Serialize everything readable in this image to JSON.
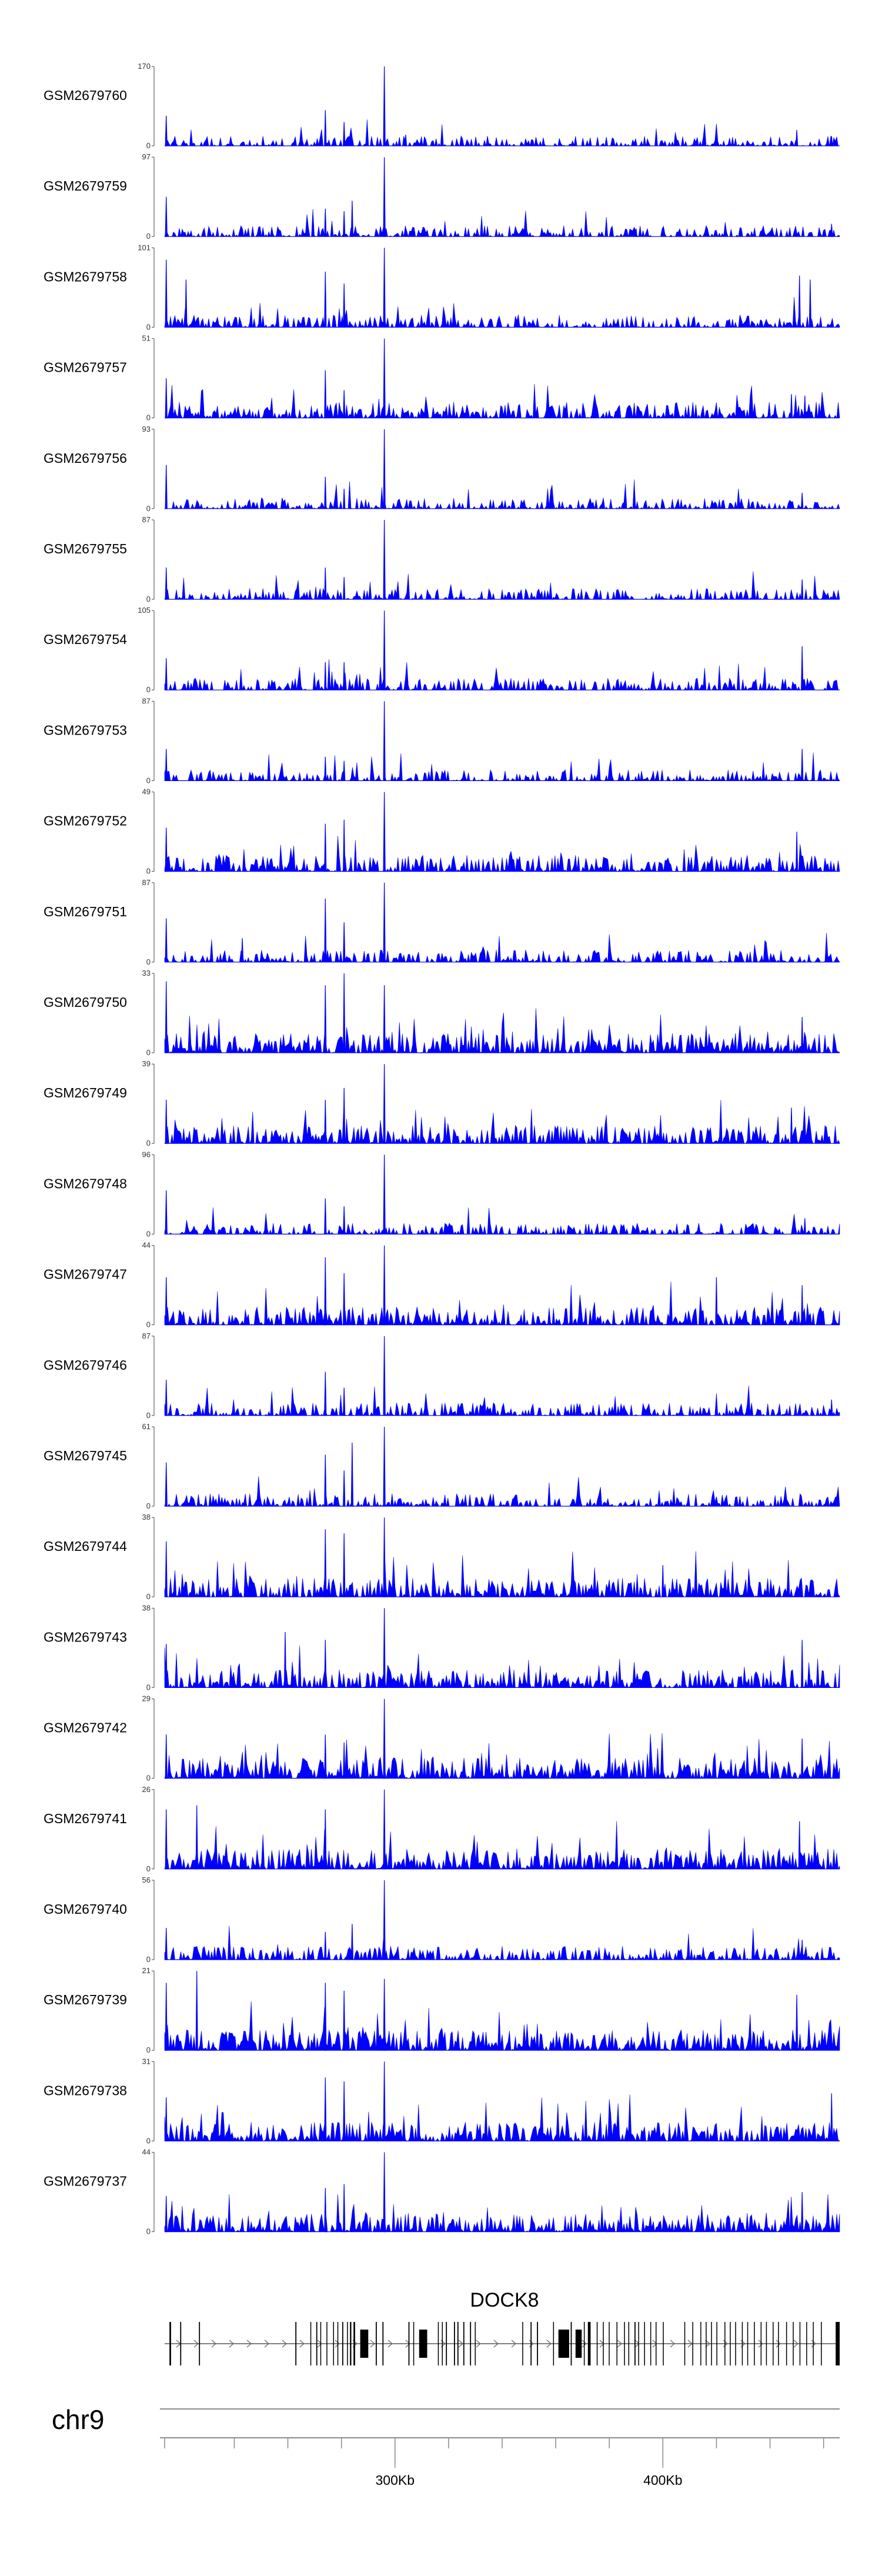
{
  "chart_data": {
    "type": "area",
    "chromosome": "chr9",
    "gene": {
      "name": "DOCK8",
      "strand": "+"
    },
    "x_range_bp": [
      214000,
      466000
    ],
    "x_ticks": [
      {
        "value": 300000,
        "label": "300Kb"
      },
      {
        "value": 400000,
        "label": "400Kb"
      }
    ],
    "x_minor_ticks": [
      214000,
      240000,
      260000,
      280000,
      320000,
      340000,
      360000,
      380000,
      420000,
      440000,
      460000
    ],
    "series_color": "#0000ff",
    "peak_position_bp": 296000,
    "tracks": [
      {
        "name": "GSM2679760",
        "ymax": 170,
        "ymin": 0,
        "density": 0.4,
        "peaks": [
          [
            296000,
            1.0
          ],
          [
            214600,
            0.38
          ],
          [
            274000,
            0.45
          ],
          [
            281000,
            0.3
          ],
          [
            304000,
            0.14
          ],
          [
            450000,
            0.2
          ],
          [
            463000,
            0.12
          ]
        ]
      },
      {
        "name": "GSM2679759",
        "ymax": 97,
        "ymin": 0,
        "density": 0.45,
        "peaks": [
          [
            296000,
            1.0
          ],
          [
            214600,
            0.5
          ],
          [
            274000,
            0.35
          ],
          [
            281000,
            0.32
          ],
          [
            284000,
            0.45
          ],
          [
            390000,
            0.1
          ],
          [
            463000,
            0.16
          ]
        ]
      },
      {
        "name": "GSM2679758",
        "ymax": 101,
        "ymin": 0,
        "density": 0.55,
        "peaks": [
          [
            296000,
            1.0
          ],
          [
            214600,
            0.85
          ],
          [
            222000,
            0.6
          ],
          [
            274000,
            0.7
          ],
          [
            281000,
            0.55
          ],
          [
            451000,
            0.65
          ],
          [
            455000,
            0.6
          ]
        ]
      },
      {
        "name": "GSM2679757",
        "ymax": 51,
        "ymin": 0,
        "density": 0.75,
        "peaks": [
          [
            296000,
            1.0
          ],
          [
            214600,
            0.5
          ],
          [
            274000,
            0.6
          ],
          [
            281000,
            0.35
          ],
          [
            448000,
            0.3
          ],
          [
            453000,
            0.28
          ]
        ]
      },
      {
        "name": "GSM2679756",
        "ymax": 93,
        "ymin": 0,
        "density": 0.45,
        "peaks": [
          [
            296000,
            1.0
          ],
          [
            214600,
            0.55
          ],
          [
            274000,
            0.4
          ],
          [
            281000,
            0.25
          ],
          [
            452000,
            0.2
          ]
        ]
      },
      {
        "name": "GSM2679755",
        "ymax": 87,
        "ymin": 0,
        "density": 0.45,
        "peaks": [
          [
            296000,
            1.0
          ],
          [
            214600,
            0.4
          ],
          [
            274000,
            0.4
          ],
          [
            281000,
            0.28
          ],
          [
            452000,
            0.25
          ]
        ]
      },
      {
        "name": "GSM2679754",
        "ymax": 105,
        "ymin": 0,
        "density": 0.5,
        "peaks": [
          [
            296000,
            1.0
          ],
          [
            214600,
            0.4
          ],
          [
            274000,
            0.35
          ],
          [
            281000,
            0.35
          ],
          [
            452000,
            0.55
          ]
        ]
      },
      {
        "name": "GSM2679753",
        "ymax": 87,
        "ymin": 0,
        "density": 0.45,
        "peaks": [
          [
            296000,
            1.0
          ],
          [
            214600,
            0.4
          ],
          [
            274000,
            0.3
          ],
          [
            281000,
            0.25
          ],
          [
            452000,
            0.4
          ]
        ]
      },
      {
        "name": "GSM2679752",
        "ymax": 49,
        "ymin": 0,
        "density": 0.75,
        "peaks": [
          [
            296000,
            1.0
          ],
          [
            214600,
            0.55
          ],
          [
            274000,
            0.6
          ],
          [
            281000,
            0.65
          ],
          [
            450000,
            0.5
          ]
        ]
      },
      {
        "name": "GSM2679751",
        "ymax": 87,
        "ymin": 0,
        "density": 0.55,
        "peaks": [
          [
            296000,
            1.0
          ],
          [
            214600,
            0.55
          ],
          [
            274000,
            0.8
          ],
          [
            281000,
            0.5
          ],
          [
            243000,
            0.3
          ]
        ]
      },
      {
        "name": "GSM2679750",
        "ymax": 33,
        "ymin": 0,
        "density": 0.95,
        "peaks": [
          [
            296000,
            0.85
          ],
          [
            214600,
            0.9
          ],
          [
            274000,
            0.85
          ],
          [
            281000,
            1.0
          ],
          [
            452000,
            0.45
          ]
        ]
      },
      {
        "name": "GSM2679749",
        "ymax": 39,
        "ymin": 0,
        "density": 0.85,
        "peaks": [
          [
            296000,
            1.0
          ],
          [
            214600,
            0.55
          ],
          [
            274000,
            0.55
          ],
          [
            281000,
            0.7
          ],
          [
            448000,
            0.45
          ]
        ]
      },
      {
        "name": "GSM2679748",
        "ymax": 96,
        "ymin": 0,
        "density": 0.45,
        "peaks": [
          [
            296000,
            1.0
          ],
          [
            214600,
            0.55
          ],
          [
            274000,
            0.45
          ],
          [
            281000,
            0.35
          ],
          [
            453000,
            0.2
          ]
        ]
      },
      {
        "name": "GSM2679747",
        "ymax": 44,
        "ymin": 0,
        "density": 0.85,
        "peaks": [
          [
            296000,
            1.0
          ],
          [
            214600,
            0.6
          ],
          [
            274000,
            0.85
          ],
          [
            281000,
            0.65
          ],
          [
            420000,
            0.6
          ],
          [
            452000,
            0.5
          ]
        ]
      },
      {
        "name": "GSM2679746",
        "ymax": 87,
        "ymin": 0,
        "density": 0.55,
        "peaks": [
          [
            296000,
            1.0
          ],
          [
            214600,
            0.45
          ],
          [
            274000,
            0.55
          ],
          [
            281000,
            0.35
          ],
          [
            463000,
            0.2
          ]
        ]
      },
      {
        "name": "GSM2679745",
        "ymax": 61,
        "ymin": 0,
        "density": 0.55,
        "peaks": [
          [
            296000,
            1.0
          ],
          [
            214600,
            0.55
          ],
          [
            274000,
            0.65
          ],
          [
            284000,
            0.8
          ],
          [
            281000,
            0.45
          ]
        ]
      },
      {
        "name": "GSM2679744",
        "ymax": 38,
        "ymin": 0,
        "density": 0.9,
        "peaks": [
          [
            296000,
            1.0
          ],
          [
            214600,
            0.7
          ],
          [
            274000,
            0.85
          ],
          [
            281000,
            0.8
          ],
          [
            400000,
            0.4
          ]
        ]
      },
      {
        "name": "GSM2679743",
        "ymax": 38,
        "ymin": 0,
        "density": 0.85,
        "peaks": [
          [
            296000,
            1.0
          ],
          [
            214600,
            0.55
          ],
          [
            259000,
            0.7
          ],
          [
            274000,
            0.6
          ],
          [
            452000,
            0.6
          ]
        ]
      },
      {
        "name": "GSM2679742",
        "ymax": 29,
        "ymin": 0,
        "density": 1.0,
        "peaks": [
          [
            296000,
            1.0
          ],
          [
            214600,
            0.55
          ],
          [
            274000,
            0.55
          ],
          [
            281000,
            0.45
          ],
          [
            452000,
            0.5
          ]
        ]
      },
      {
        "name": "GSM2679741",
        "ymax": 26,
        "ymin": 0,
        "density": 1.0,
        "peaks": [
          [
            296000,
            1.0
          ],
          [
            214600,
            0.75
          ],
          [
            226000,
            0.8
          ],
          [
            274000,
            0.75
          ],
          [
            451000,
            0.6
          ]
        ]
      },
      {
        "name": "GSM2679740",
        "ymax": 56,
        "ymin": 0,
        "density": 0.6,
        "peaks": [
          [
            296000,
            1.0
          ],
          [
            214600,
            0.4
          ],
          [
            274000,
            0.35
          ],
          [
            284000,
            0.45
          ],
          [
            452000,
            0.25
          ]
        ]
      },
      {
        "name": "GSM2679739",
        "ymax": 21,
        "ymin": 0,
        "density": 1.0,
        "peaks": [
          [
            296000,
            0.9
          ],
          [
            214600,
            0.85
          ],
          [
            226000,
            1.0
          ],
          [
            274000,
            0.85
          ],
          [
            281000,
            0.75
          ],
          [
            450000,
            0.7
          ]
        ]
      },
      {
        "name": "GSM2679738",
        "ymax": 31,
        "ymin": 0,
        "density": 0.9,
        "peaks": [
          [
            296000,
            1.0
          ],
          [
            214600,
            0.55
          ],
          [
            274000,
            0.8
          ],
          [
            281000,
            0.75
          ],
          [
            463000,
            0.6
          ]
        ]
      },
      {
        "name": "GSM2679737",
        "ymax": 44,
        "ymin": 0,
        "density": 0.85,
        "peaks": [
          [
            296000,
            1.0
          ],
          [
            214600,
            0.45
          ],
          [
            274000,
            0.55
          ],
          [
            281000,
            0.6
          ],
          [
            452000,
            0.5
          ]
        ]
      }
    ]
  },
  "exons_bp": [
    [
      215800,
      216400
    ],
    [
      219800,
      220200
    ],
    [
      226800,
      227200
    ],
    [
      262800,
      263200
    ],
    [
      268400,
      268700
    ],
    [
      270600,
      271000
    ],
    [
      272100,
      272400
    ],
    [
      274400,
      274700
    ],
    [
      276900,
      277200
    ],
    [
      278500,
      278800
    ],
    [
      280300,
      280700
    ],
    [
      282100,
      282400
    ],
    [
      283200,
      283700
    ],
    [
      284500,
      285100
    ],
    [
      287000,
      290000
    ],
    [
      292800,
      293200
    ],
    [
      295300,
      295700
    ],
    [
      305000,
      305400
    ],
    [
      306800,
      307100
    ],
    [
      309000,
      312000
    ],
    [
      316000,
      316300
    ],
    [
      317500,
      317800
    ],
    [
      319000,
      319400
    ],
    [
      322000,
      322400
    ],
    [
      323300,
      323700
    ],
    [
      325500,
      325900
    ],
    [
      328000,
      328400
    ],
    [
      329800,
      330100
    ],
    [
      347500,
      347800
    ],
    [
      350600,
      351000
    ],
    [
      353000,
      353400
    ],
    [
      359000,
      359300
    ],
    [
      361000,
      365000
    ],
    [
      365600,
      366000
    ],
    [
      367400,
      369700
    ],
    [
      370500,
      370800
    ],
    [
      372000,
      373000
    ],
    [
      375300,
      375600
    ],
    [
      377600,
      377900
    ],
    [
      379800,
      380100
    ],
    [
      382700,
      383000
    ],
    [
      385500,
      385800
    ],
    [
      387100,
      387400
    ],
    [
      389400,
      389800
    ],
    [
      390800,
      391100
    ],
    [
      393000,
      393300
    ],
    [
      395300,
      395600
    ],
    [
      397300,
      397600
    ],
    [
      400000,
      400300
    ],
    [
      408000,
      408300
    ],
    [
      411000,
      411300
    ],
    [
      414000,
      414300
    ],
    [
      416000,
      416300
    ],
    [
      418000,
      418300
    ],
    [
      420000,
      420300
    ],
    [
      423000,
      423300
    ],
    [
      425000,
      425300
    ],
    [
      427000,
      427300
    ],
    [
      429500,
      429800
    ],
    [
      431500,
      431800
    ],
    [
      434000,
      434300
    ],
    [
      436500,
      436800
    ],
    [
      438500,
      438800
    ],
    [
      441000,
      441300
    ],
    [
      443000,
      443300
    ],
    [
      446000,
      446300
    ],
    [
      448500,
      448800
    ],
    [
      451000,
      451300
    ],
    [
      453500,
      453800
    ],
    [
      456000,
      456300
    ],
    [
      459000,
      459300
    ],
    [
      464500,
      466000
    ]
  ]
}
